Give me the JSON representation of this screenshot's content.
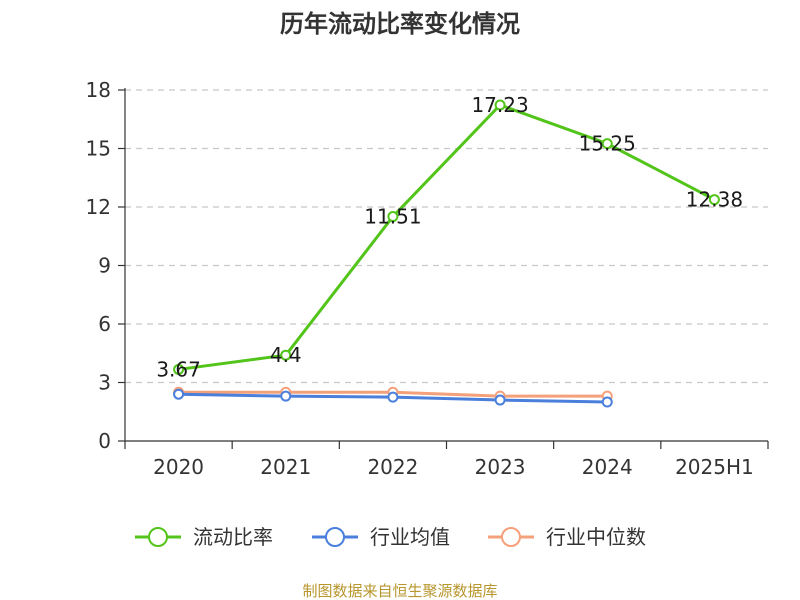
{
  "chart_data": {
    "type": "line",
    "title": "历年流动比率变化情况",
    "categories": [
      "2020",
      "2021",
      "2022",
      "2023",
      "2024",
      "2025H1"
    ],
    "yticks": [
      "0",
      "3",
      "6",
      "9",
      "12",
      "15",
      "18"
    ],
    "ylim": [
      0,
      18
    ],
    "grid": true,
    "legend_position": "bottom",
    "series": [
      {
        "name": "流动比率",
        "color": "#52c41a",
        "values": [
          3.67,
          4.4,
          11.51,
          17.23,
          15.25,
          12.38
        ],
        "labels": [
          "3.67",
          "4.4",
          "11.51",
          "17.23",
          "15.25",
          "12.38"
        ]
      },
      {
        "name": "行业均值",
        "color": "#4a7fdb",
        "values": [
          2.4,
          2.3,
          2.25,
          2.1,
          2.0,
          null
        ]
      },
      {
        "name": "行业中位数",
        "color": "#f4a07a",
        "values": [
          2.5,
          2.5,
          2.5,
          2.3,
          2.3,
          null
        ]
      }
    ],
    "source": "制图数据来自恒生聚源数据库"
  }
}
